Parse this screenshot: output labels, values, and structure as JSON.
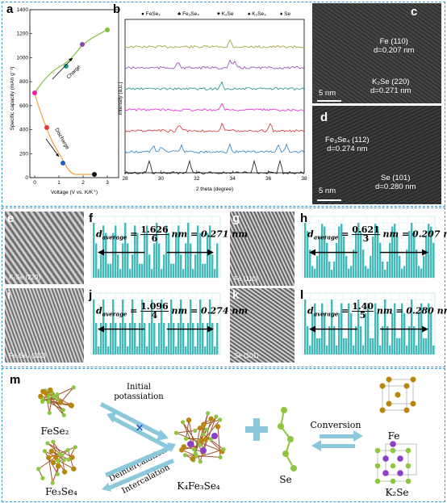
{
  "panel_labels": {
    "a": "a",
    "b": "b",
    "c": "c",
    "d": "d",
    "e": "e",
    "f": "f",
    "g": "g",
    "h": "h",
    "i": "i",
    "j": "j",
    "k": "k",
    "l": "l",
    "m": "m"
  },
  "panel_a": {
    "ylabel": "Specific capacity (mAh g⁻¹)",
    "xlabel": "Voltage (V vs. K/K⁺)",
    "yticks": [
      "0",
      "200",
      "400",
      "600",
      "800",
      "1000",
      "1200",
      "1400"
    ],
    "xticks": [
      "0",
      "1",
      "2",
      "3"
    ],
    "charge_label": "Charge",
    "discharge_label": "Discharge",
    "colors": {
      "charge": "#7fbf3f",
      "discharge": "#f2a040",
      "p1": "#e91fb0",
      "p2": "#e53935",
      "p3": "#1e5fbf",
      "p4": "#111111",
      "p5": "#2a9d8f",
      "p6": "#8e44ad",
      "p7": "#7fbf3f"
    }
  },
  "panel_b": {
    "legend": [
      "FeSe₂",
      "Fe₃Se₄",
      "K₂Se",
      "K₂Se₃",
      "Se"
    ],
    "legend_symbols": [
      "●",
      "♣",
      "♥",
      "♠",
      "♦"
    ],
    "ylabel": "Intensity (a.u.)",
    "xlabel": "2 theta (degree)",
    "xticks": [
      "28",
      "30",
      "32",
      "34",
      "36",
      "38"
    ],
    "trace_colors": [
      "#9a9a2a",
      "#8e44ad",
      "#1a9090",
      "#e91fd6",
      "#d63030",
      "#2a7fc0",
      "#111111"
    ]
  },
  "panel_c": {
    "line1": "Fe (110)",
    "line2": "d=0.207 nm",
    "line3": "K₂Se (220)",
    "line4": "d=0.271 nm",
    "scale": "5 nm"
  },
  "panel_d": {
    "line1": "Fe₃Se₄ (112)",
    "line2": "d=0.274 nm",
    "line3": "Se (101)",
    "line4": "d=0.280 nm",
    "scale": "5 nm"
  },
  "fft_labels": {
    "e": "K₂Se (220)",
    "g": "Fe (110)",
    "i": "Fe₃Se₄ (112)",
    "k": "Se (101)"
  },
  "profiles": {
    "f": {
      "num": "1.626",
      "den": "6",
      "result": "nm = 0.271 nm"
    },
    "h": {
      "num": "0.621",
      "den": "3",
      "result": "nm = 0.207 nm"
    },
    "j": {
      "num": "1.096",
      "den": "4",
      "result": "nm = 0.274 nm"
    },
    "l": {
      "num": "1.40",
      "den": "5",
      "result": "nm = 0.280 nm"
    },
    "prefix": "d",
    "sub": "average",
    "bar_color": "#45b8b8"
  },
  "panel_m": {
    "fese2": "FeSe₂",
    "fe3se4": "Fe₃Se₄",
    "initial": "Initial",
    "potassiation": "potassiation",
    "deintercalation": "Deintercalation",
    "intercalation": "Intercalation",
    "k4fe3se4": "K₄Fe₃Se₄",
    "se": "Se",
    "conversion": "Conversion",
    "fe": "Fe",
    "k2se": "K₂Se",
    "arrow_color": "#8cc8dc",
    "plus_color": "#8cc8dc"
  }
}
